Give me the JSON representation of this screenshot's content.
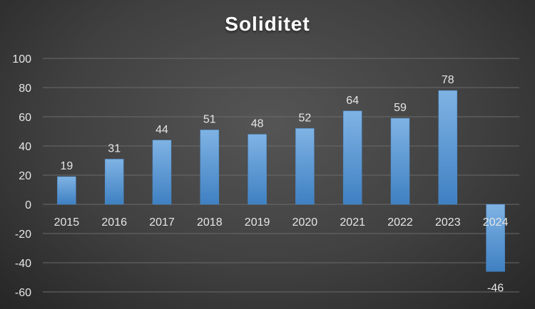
{
  "chart_data": {
    "type": "bar",
    "title": "Soliditet",
    "categories": [
      "2015",
      "2016",
      "2017",
      "2018",
      "2019",
      "2020",
      "2021",
      "2022",
      "2023",
      "2024"
    ],
    "values": [
      19,
      31,
      44,
      51,
      48,
      52,
      64,
      59,
      78,
      -46
    ],
    "ylim": [
      -60,
      100
    ],
    "yticks": [
      100,
      80,
      60,
      40,
      20,
      0,
      -20,
      -40,
      -60
    ],
    "xlabel": "",
    "ylabel": "",
    "grid": true,
    "legend": "none",
    "colors": {
      "bar": "#5b9bd5",
      "bar_light": "#7fb3e4",
      "bar_dark": "#3f80c2",
      "grid": "#6a6a6a",
      "text": "#e6e6e6"
    }
  }
}
